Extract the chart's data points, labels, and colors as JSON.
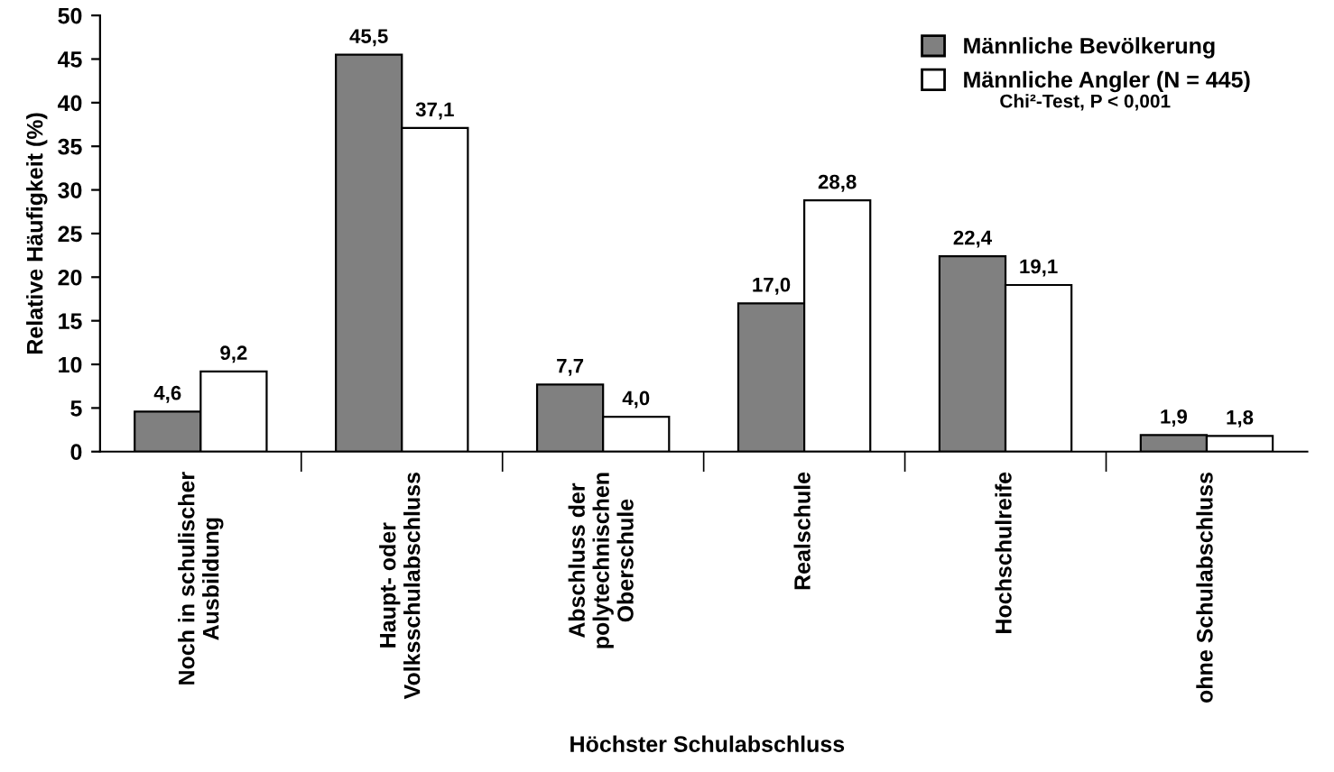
{
  "chart_data": {
    "type": "bar",
    "xlabel": "Höchster Schulabschluss",
    "ylabel": "Relative Häufigkeit (%)",
    "categories": [
      "Noch in schulischer\nAusbildung",
      "Haupt- oder\nVolksschulabschluss",
      "Abschluss der\npolytechnischen\nOberschule",
      "Realschule",
      "Hochschulreife",
      "ohne Schulabschluss"
    ],
    "series": [
      {
        "name": "Männliche Bevölkerung",
        "color": "#808080",
        "values": [
          4.6,
          45.5,
          7.7,
          17.0,
          22.4,
          1.9
        ],
        "value_labels": [
          "4,6",
          "45,5",
          "7,7",
          "17,0",
          "22,4",
          "1,9"
        ]
      },
      {
        "name": "Männliche Angler (N = 445)",
        "color": "#ffffff",
        "values": [
          9.2,
          37.1,
          4.0,
          28.8,
          19.1,
          1.8
        ],
        "value_labels": [
          "9,2",
          "37,1",
          "4,0",
          "28,8",
          "19,1",
          "1,8"
        ]
      }
    ],
    "ylim": [
      0,
      50
    ],
    "yticks": [
      0,
      5,
      10,
      15,
      20,
      25,
      30,
      35,
      40,
      45,
      50
    ],
    "annotations": [
      "Chi²-Test, P < 0,001"
    ],
    "legend": "top right",
    "grid": false
  }
}
